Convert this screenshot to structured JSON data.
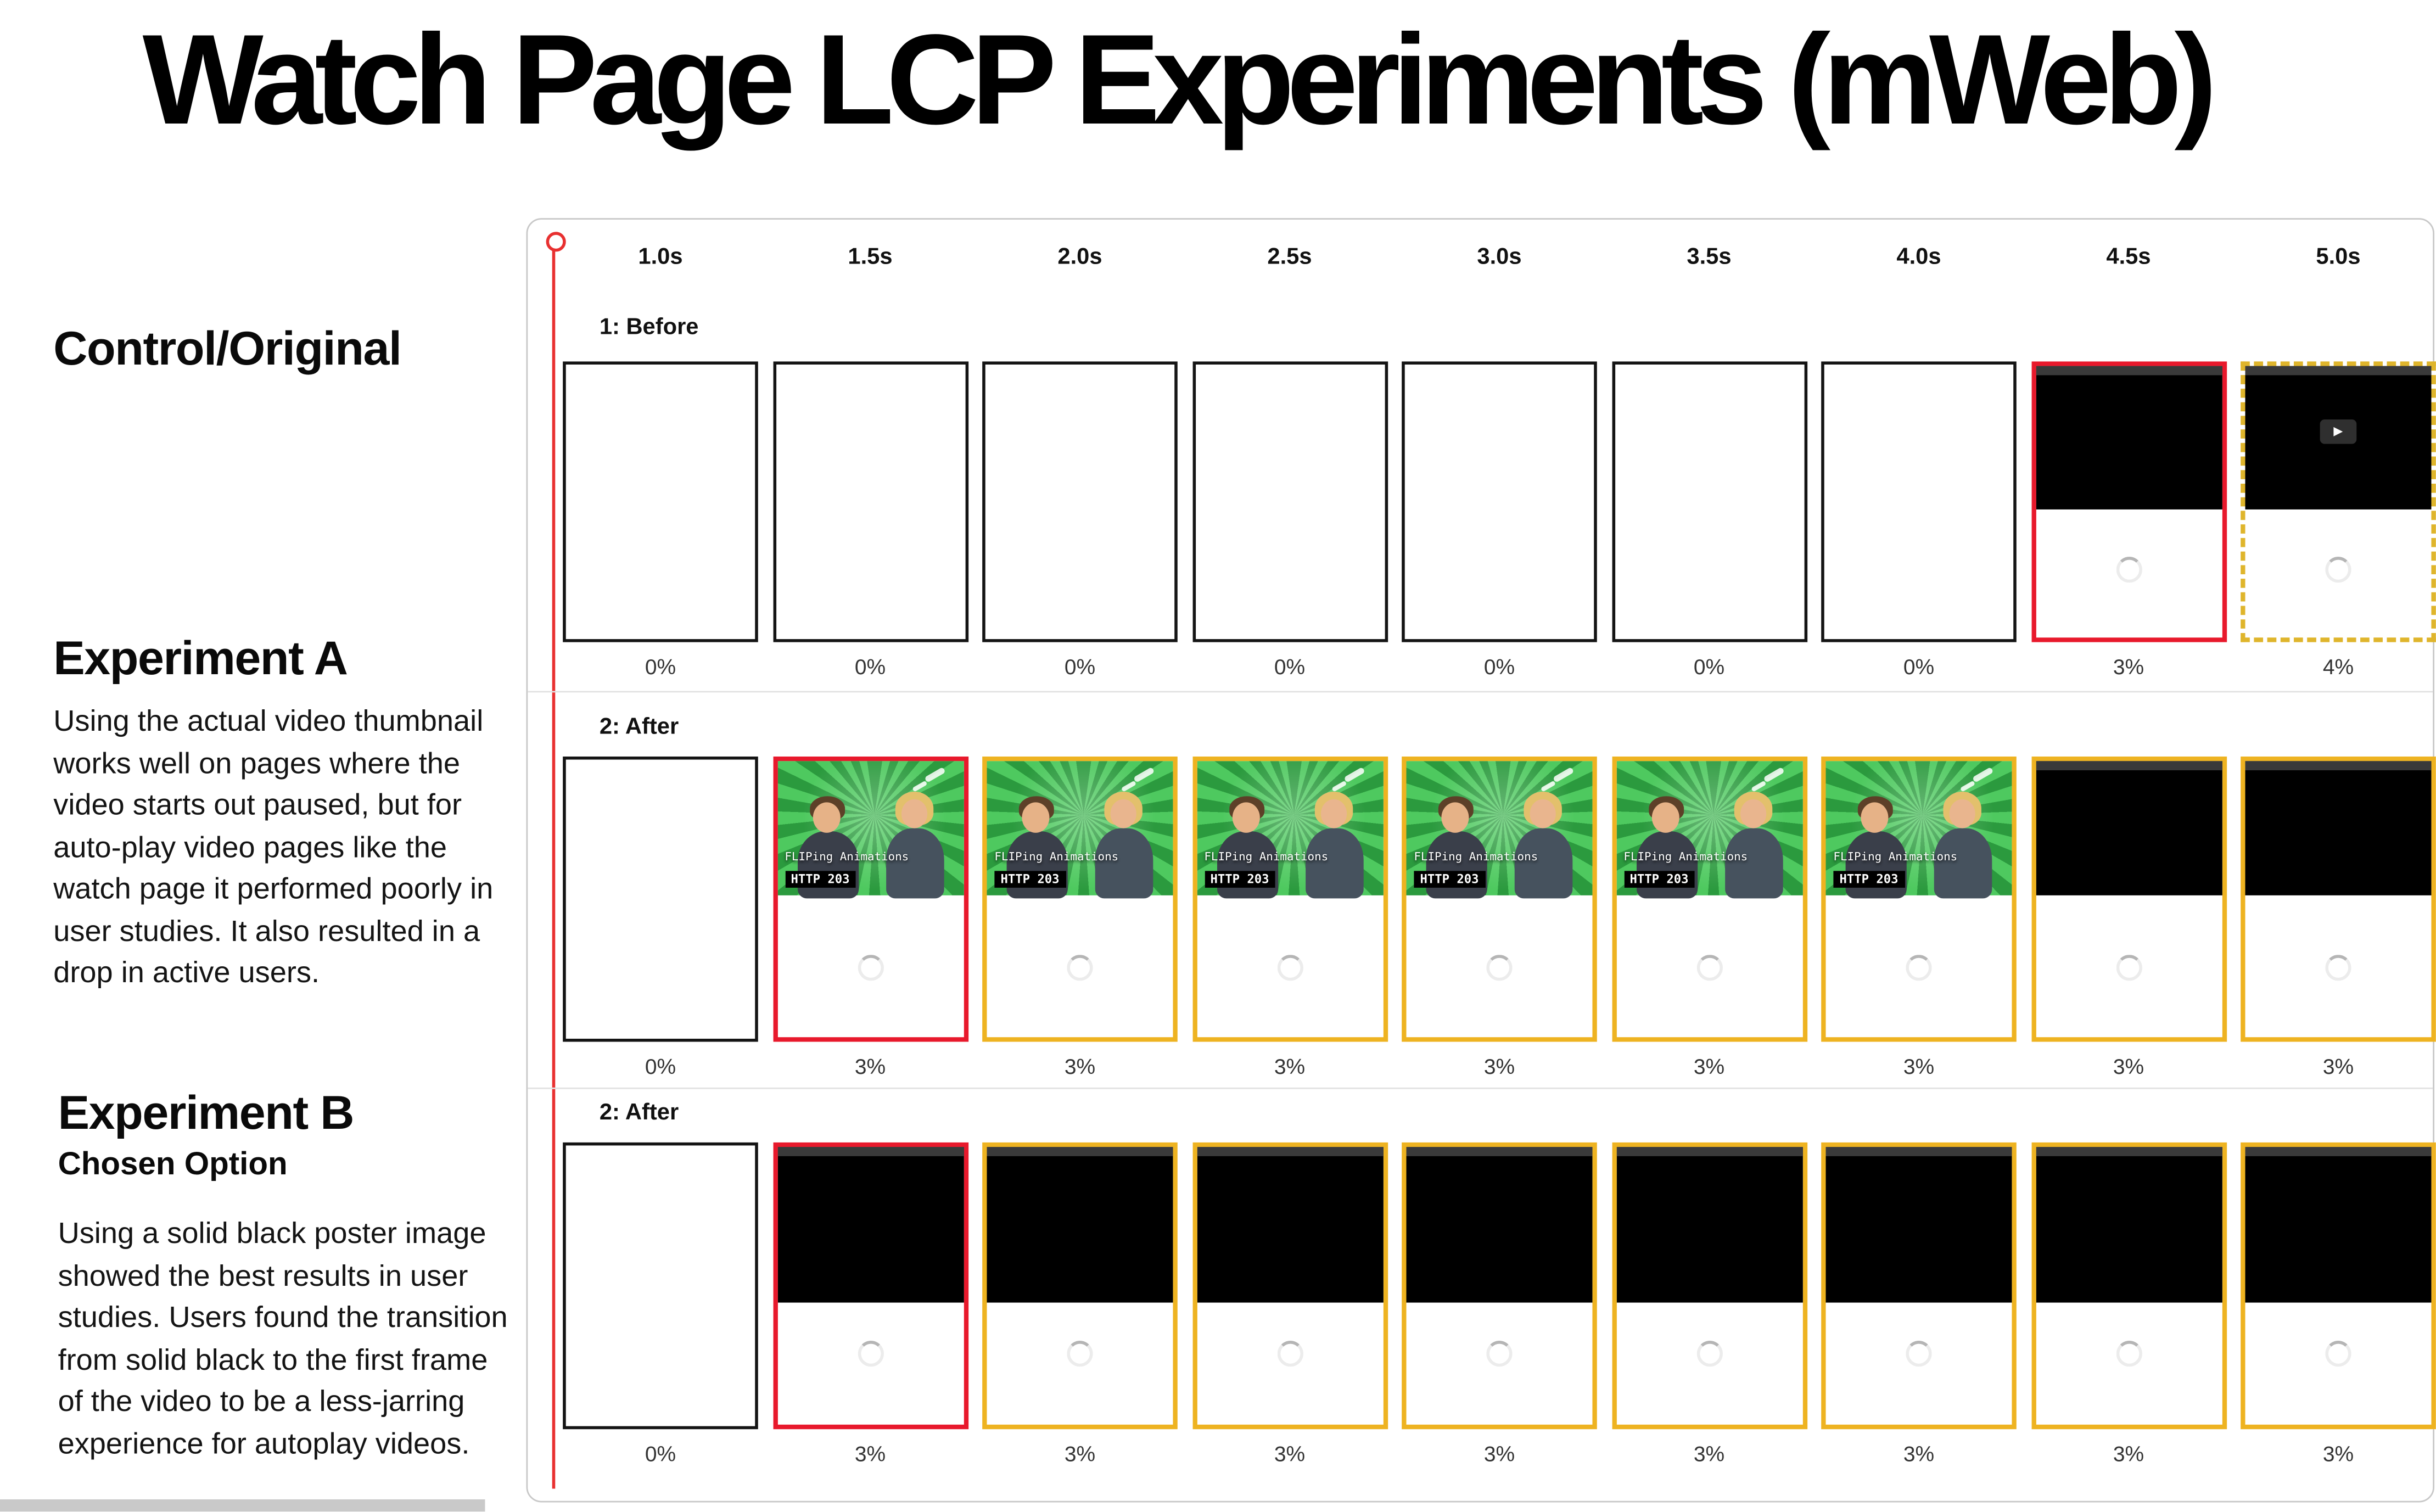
{
  "title": "Watch Page LCP Experiments (mWeb)",
  "annotations": {
    "control": {
      "heading": "Control/Original"
    },
    "experiment_a": {
      "heading": "Experiment A",
      "body": "Using the actual video thumbnail works well on pages where the video starts out paused, but for auto-play video pages like the watch page it performed poorly in user studies. It also resulted in a drop in active users."
    },
    "experiment_b": {
      "heading": "Experiment B",
      "subheading": "Chosen Option",
      "body": "Using a solid black poster image showed the best results in user studies. Users found the transition from solid black to the first frame of the video to be a less-jarring experience for autoplay videos."
    }
  },
  "filmstrip": {
    "time_labels": [
      "1.0s",
      "1.5s",
      "2.0s",
      "2.5s",
      "3.0s",
      "3.5s",
      "4.0s",
      "4.5s",
      "5.0s"
    ],
    "thumbnail_text": {
      "line1": "FLIPing Animations",
      "line2": "HTTP 203"
    },
    "rows": [
      {
        "label": "1: Before",
        "frames": [
          {
            "type": "blank",
            "border": "black",
            "progress": "0%"
          },
          {
            "type": "blank",
            "border": "black",
            "progress": "0%"
          },
          {
            "type": "blank",
            "border": "black",
            "progress": "0%"
          },
          {
            "type": "blank",
            "border": "black",
            "progress": "0%"
          },
          {
            "type": "blank",
            "border": "black",
            "progress": "0%"
          },
          {
            "type": "blank",
            "border": "black",
            "progress": "0%"
          },
          {
            "type": "blank",
            "border": "black",
            "progress": "0%"
          },
          {
            "type": "black-video",
            "border": "red",
            "progress": "3%"
          },
          {
            "type": "black-video-play",
            "border": "dashed-yellow",
            "progress": "4%"
          }
        ]
      },
      {
        "label": "2: After",
        "frames": [
          {
            "type": "blank",
            "border": "black",
            "progress": "0%"
          },
          {
            "type": "thumbnail",
            "border": "red",
            "progress": "3%"
          },
          {
            "type": "thumbnail",
            "border": "yellow",
            "progress": "3%"
          },
          {
            "type": "thumbnail",
            "border": "yellow",
            "progress": "3%"
          },
          {
            "type": "thumbnail",
            "border": "yellow",
            "progress": "3%"
          },
          {
            "type": "thumbnail",
            "border": "yellow",
            "progress": "3%"
          },
          {
            "type": "thumbnail",
            "border": "yellow",
            "progress": "3%"
          },
          {
            "type": "black-video",
            "border": "yellow",
            "progress": "3%"
          },
          {
            "type": "black-video",
            "border": "yellow",
            "progress": "3%"
          }
        ]
      },
      {
        "label": "2: After",
        "frames": [
          {
            "type": "blank",
            "border": "black",
            "progress": "0%"
          },
          {
            "type": "black-video",
            "border": "red",
            "progress": "3%"
          },
          {
            "type": "black-video",
            "border": "yellow",
            "progress": "3%"
          },
          {
            "type": "black-video",
            "border": "yellow",
            "progress": "3%"
          },
          {
            "type": "black-video",
            "border": "yellow",
            "progress": "3%"
          },
          {
            "type": "black-video",
            "border": "yellow",
            "progress": "3%"
          },
          {
            "type": "black-video",
            "border": "yellow",
            "progress": "3%"
          },
          {
            "type": "black-video",
            "border": "yellow",
            "progress": "3%"
          },
          {
            "type": "black-video",
            "border": "yellow",
            "progress": "3%"
          }
        ]
      }
    ]
  },
  "colors": {
    "highlight_red": "#e8192c",
    "highlight_yellow": "#eeb321",
    "marker_red": "#e83030",
    "thumbnail_green": "#2b9a3e"
  }
}
